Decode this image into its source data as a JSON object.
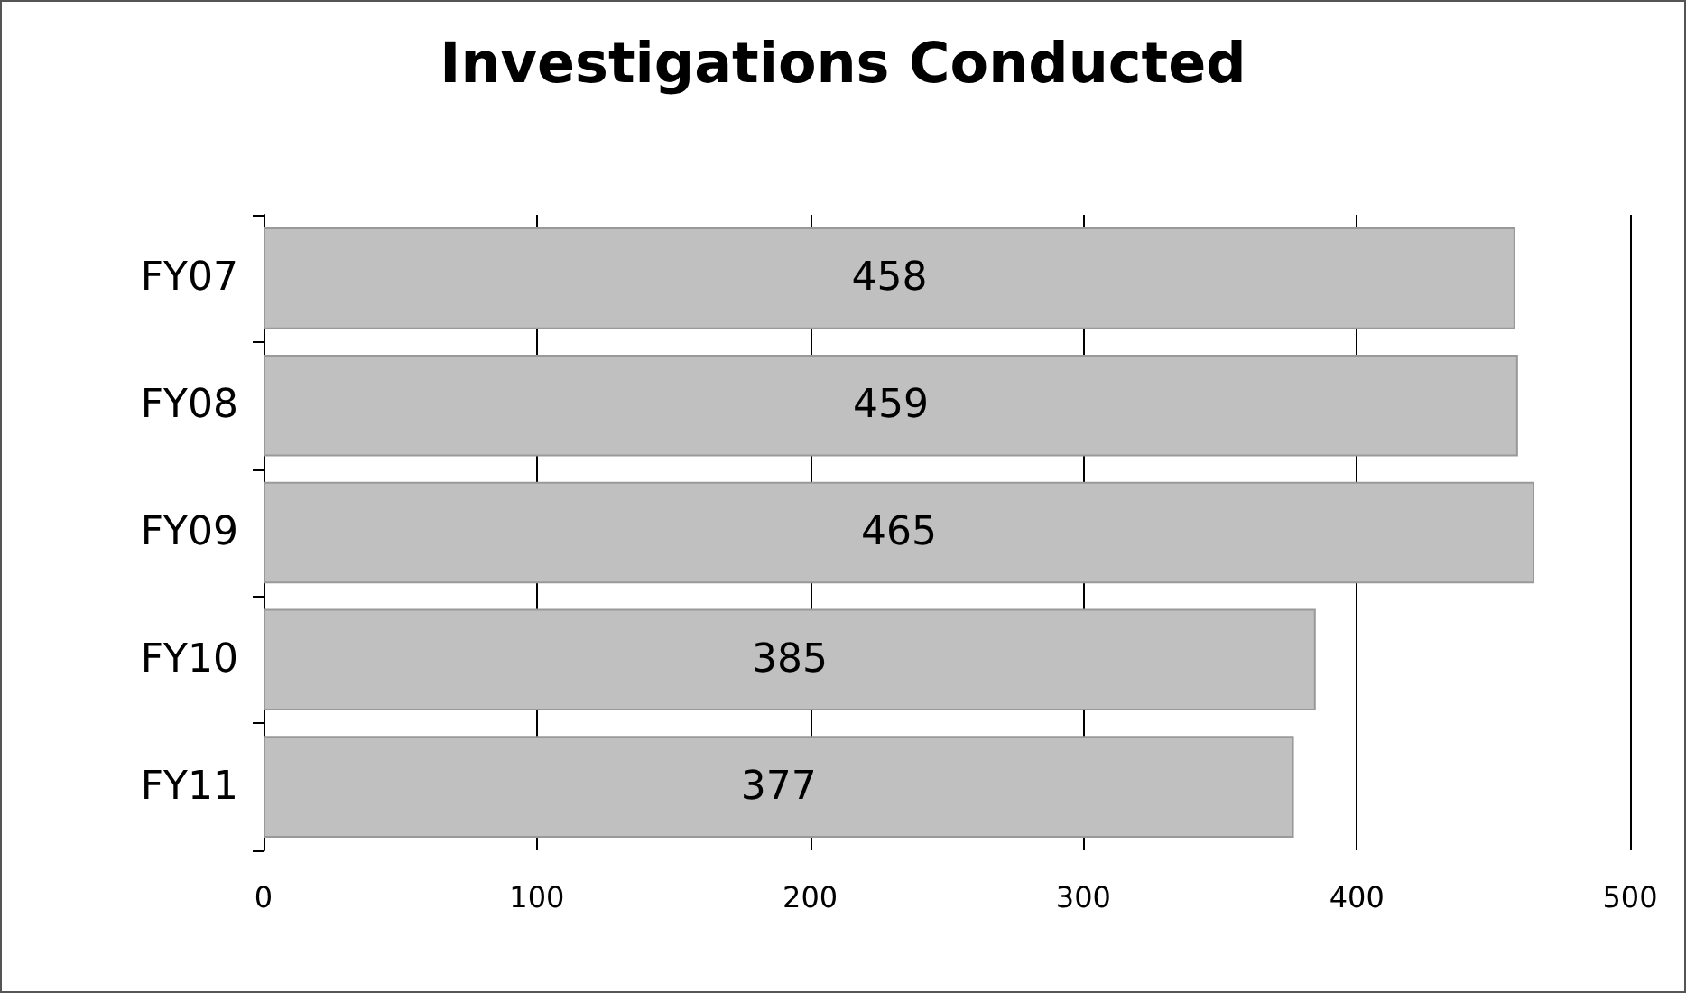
{
  "chart_data": {
    "type": "bar",
    "orientation": "horizontal",
    "title": "Investigations Conducted",
    "categories": [
      "FY07",
      "FY08",
      "FY09",
      "FY10",
      "FY11"
    ],
    "values": [
      458,
      459,
      465,
      385,
      377
    ],
    "color": "#c0c0c0",
    "xlim": [
      0,
      500
    ],
    "xticks": [
      0,
      100,
      200,
      300,
      400,
      500
    ],
    "grid": "x",
    "data_labels": true
  }
}
